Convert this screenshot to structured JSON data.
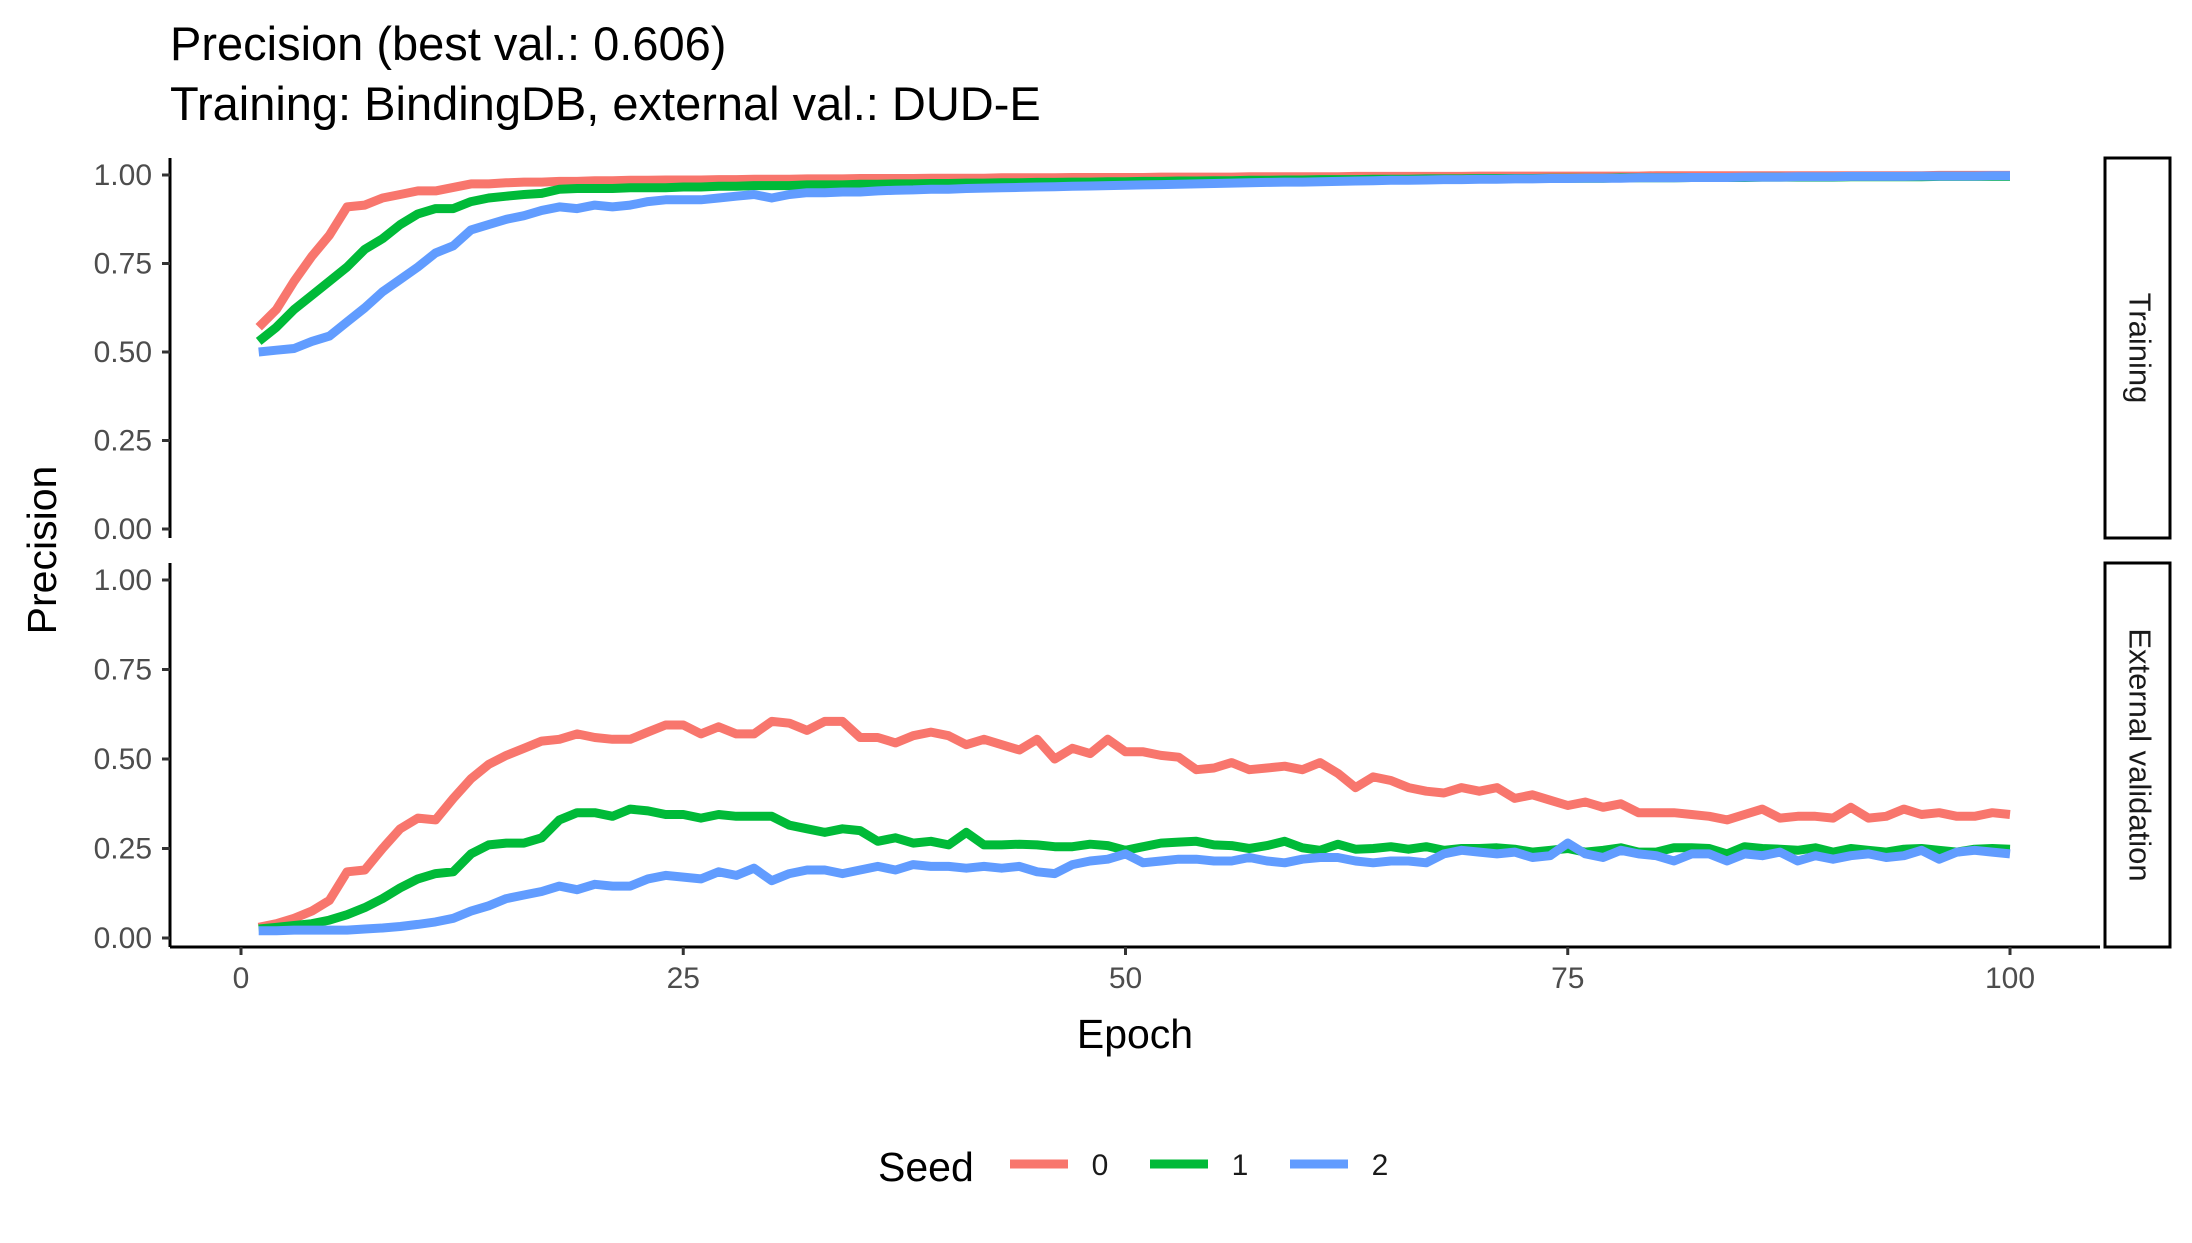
{
  "chart_data": {
    "type": "line",
    "title": "Precision (best val.: 0.606)",
    "subtitle": "Training: BindingDB, external val.: DUD-E",
    "xlabel": "Epoch",
    "ylabel": "Precision",
    "xlim": [
      0,
      100
    ],
    "ylim": [
      0,
      1
    ],
    "x_ticks": [
      0,
      25,
      50,
      75,
      100
    ],
    "y_ticks": [
      0,
      0.25,
      0.5,
      0.75,
      1.0
    ],
    "y_tick_labels": [
      "0.00",
      "0.25",
      "0.50",
      "0.75",
      "1.00"
    ],
    "grid": false,
    "legend": {
      "title": "Seed",
      "position": "bottom",
      "entries": [
        {
          "label": "0",
          "color": "#F8766D"
        },
        {
          "label": "1",
          "color": "#00BA38"
        },
        {
          "label": "2",
          "color": "#619CFF"
        }
      ]
    },
    "x": [
      1,
      2,
      3,
      4,
      5,
      6,
      7,
      8,
      9,
      10,
      11,
      12,
      13,
      14,
      15,
      16,
      17,
      18,
      19,
      20,
      21,
      22,
      23,
      24,
      25,
      26,
      27,
      28,
      29,
      30,
      31,
      32,
      33,
      34,
      35,
      36,
      37,
      38,
      39,
      40,
      41,
      42,
      43,
      44,
      45,
      46,
      47,
      48,
      49,
      50,
      51,
      52,
      53,
      54,
      55,
      56,
      57,
      58,
      59,
      60,
      61,
      62,
      63,
      64,
      65,
      66,
      67,
      68,
      69,
      70,
      71,
      72,
      73,
      74,
      75,
      76,
      77,
      78,
      79,
      80,
      81,
      82,
      83,
      84,
      85,
      86,
      87,
      88,
      89,
      90,
      91,
      92,
      93,
      94,
      95,
      96,
      97,
      98,
      99,
      100
    ],
    "panels": [
      {
        "strip": "Training",
        "series": [
          {
            "name": "0",
            "color": "#F8766D",
            "values": [
              0.57,
              0.62,
              0.7,
              0.77,
              0.83,
              0.91,
              0.915,
              0.935,
              0.945,
              0.955,
              0.955,
              0.965,
              0.975,
              0.975,
              0.978,
              0.98,
              0.98,
              0.982,
              0.982,
              0.984,
              0.984,
              0.985,
              0.985,
              0.986,
              0.986,
              0.986,
              0.987,
              0.987,
              0.988,
              0.988,
              0.988,
              0.989,
              0.989,
              0.989,
              0.99,
              0.99,
              0.99,
              0.99,
              0.991,
              0.991,
              0.991,
              0.991,
              0.992,
              0.992,
              0.992,
              0.992,
              0.993,
              0.993,
              0.993,
              0.993,
              0.993,
              0.994,
              0.994,
              0.994,
              0.994,
              0.994,
              0.995,
              0.995,
              0.995,
              0.995,
              0.995,
              0.995,
              0.996,
              0.996,
              0.996,
              0.996,
              0.996,
              0.996,
              0.996,
              0.997,
              0.997,
              0.997,
              0.997,
              0.997,
              0.997,
              0.997,
              0.997,
              0.997,
              0.997,
              0.998,
              0.998,
              0.998,
              0.998,
              0.998,
              0.998,
              0.998,
              0.998,
              0.998,
              0.998,
              0.998,
              0.998,
              0.998,
              0.998,
              0.998,
              0.998,
              0.999,
              0.999,
              0.999,
              0.999,
              0.999
            ]
          },
          {
            "name": "1",
            "color": "#00BA38",
            "values": [
              0.53,
              0.57,
              0.62,
              0.66,
              0.7,
              0.74,
              0.79,
              0.82,
              0.86,
              0.89,
              0.905,
              0.905,
              0.925,
              0.935,
              0.94,
              0.945,
              0.948,
              0.96,
              0.962,
              0.962,
              0.962,
              0.964,
              0.964,
              0.964,
              0.966,
              0.966,
              0.968,
              0.968,
              0.97,
              0.97,
              0.97,
              0.972,
              0.972,
              0.972,
              0.974,
              0.974,
              0.975,
              0.975,
              0.976,
              0.976,
              0.977,
              0.977,
              0.978,
              0.978,
              0.979,
              0.979,
              0.98,
              0.98,
              0.981,
              0.981,
              0.982,
              0.982,
              0.983,
              0.983,
              0.984,
              0.984,
              0.985,
              0.985,
              0.986,
              0.986,
              0.987,
              0.987,
              0.987,
              0.988,
              0.988,
              0.988,
              0.989,
              0.989,
              0.989,
              0.99,
              0.99,
              0.99,
              0.99,
              0.991,
              0.991,
              0.991,
              0.991,
              0.992,
              0.992,
              0.992,
              0.992,
              0.993,
              0.993,
              0.993,
              0.993,
              0.994,
              0.994,
              0.994,
              0.994,
              0.994,
              0.995,
              0.995,
              0.995,
              0.995,
              0.995,
              0.996,
              0.996,
              0.996,
              0.996,
              0.996
            ]
          },
          {
            "name": "2",
            "color": "#619CFF",
            "values": [
              0.5,
              0.505,
              0.51,
              0.53,
              0.545,
              0.585,
              0.625,
              0.67,
              0.705,
              0.74,
              0.78,
              0.8,
              0.845,
              0.86,
              0.875,
              0.885,
              0.9,
              0.91,
              0.905,
              0.915,
              0.91,
              0.915,
              0.925,
              0.93,
              0.93,
              0.93,
              0.935,
              0.94,
              0.945,
              0.935,
              0.945,
              0.95,
              0.95,
              0.952,
              0.952,
              0.955,
              0.957,
              0.958,
              0.96,
              0.96,
              0.962,
              0.963,
              0.964,
              0.965,
              0.966,
              0.967,
              0.968,
              0.969,
              0.97,
              0.971,
              0.972,
              0.973,
              0.974,
              0.975,
              0.976,
              0.977,
              0.978,
              0.979,
              0.98,
              0.98,
              0.981,
              0.982,
              0.983,
              0.984,
              0.985,
              0.985,
              0.986,
              0.987,
              0.987,
              0.988,
              0.988,
              0.989,
              0.989,
              0.99,
              0.99,
              0.991,
              0.991,
              0.991,
              0.992,
              0.992,
              0.992,
              0.993,
              0.993,
              0.993,
              0.994,
              0.994,
              0.994,
              0.995,
              0.995,
              0.995,
              0.996,
              0.996,
              0.996,
              0.996,
              0.997,
              0.997,
              0.997,
              0.997,
              0.998,
              0.998
            ]
          }
        ]
      },
      {
        "strip": "External validation",
        "series": [
          {
            "name": "0",
            "color": "#F8766D",
            "values": [
              0.03,
              0.04,
              0.055,
              0.075,
              0.105,
              0.185,
              0.19,
              0.25,
              0.305,
              0.335,
              0.33,
              0.39,
              0.445,
              0.485,
              0.51,
              0.53,
              0.55,
              0.555,
              0.57,
              0.56,
              0.555,
              0.555,
              0.575,
              0.595,
              0.595,
              0.57,
              0.59,
              0.57,
              0.57,
              0.605,
              0.6,
              0.58,
              0.605,
              0.605,
              0.56,
              0.56,
              0.545,
              0.565,
              0.575,
              0.565,
              0.54,
              0.555,
              0.54,
              0.525,
              0.555,
              0.5,
              0.53,
              0.515,
              0.555,
              0.52,
              0.52,
              0.51,
              0.505,
              0.47,
              0.475,
              0.49,
              0.47,
              0.475,
              0.48,
              0.47,
              0.49,
              0.46,
              0.42,
              0.45,
              0.44,
              0.42,
              0.41,
              0.405,
              0.42,
              0.41,
              0.42,
              0.39,
              0.4,
              0.385,
              0.37,
              0.38,
              0.365,
              0.375,
              0.35,
              0.35,
              0.35,
              0.345,
              0.34,
              0.33,
              0.345,
              0.36,
              0.335,
              0.34,
              0.34,
              0.335,
              0.365,
              0.335,
              0.34,
              0.36,
              0.345,
              0.35,
              0.34,
              0.34,
              0.35,
              0.345
            ]
          },
          {
            "name": "1",
            "color": "#00BA38",
            "values": [
              0.025,
              0.03,
              0.035,
              0.04,
              0.05,
              0.065,
              0.085,
              0.11,
              0.14,
              0.165,
              0.18,
              0.185,
              0.235,
              0.26,
              0.265,
              0.265,
              0.28,
              0.33,
              0.35,
              0.35,
              0.34,
              0.36,
              0.355,
              0.345,
              0.345,
              0.335,
              0.345,
              0.34,
              0.34,
              0.34,
              0.315,
              0.305,
              0.295,
              0.305,
              0.3,
              0.27,
              0.28,
              0.265,
              0.27,
              0.26,
              0.295,
              0.26,
              0.26,
              0.262,
              0.26,
              0.255,
              0.255,
              0.262,
              0.258,
              0.245,
              0.255,
              0.265,
              0.268,
              0.27,
              0.26,
              0.258,
              0.25,
              0.258,
              0.27,
              0.252,
              0.245,
              0.262,
              0.248,
              0.25,
              0.255,
              0.248,
              0.255,
              0.245,
              0.25,
              0.25,
              0.252,
              0.248,
              0.24,
              0.245,
              0.25,
              0.24,
              0.245,
              0.252,
              0.24,
              0.24,
              0.252,
              0.252,
              0.25,
              0.235,
              0.255,
              0.25,
              0.248,
              0.245,
              0.252,
              0.24,
              0.25,
              0.245,
              0.24,
              0.248,
              0.25,
              0.245,
              0.24,
              0.248,
              0.25,
              0.248
            ]
          },
          {
            "name": "2",
            "color": "#619CFF",
            "values": [
              0.02,
              0.02,
              0.022,
              0.022,
              0.022,
              0.022,
              0.025,
              0.028,
              0.032,
              0.038,
              0.045,
              0.055,
              0.075,
              0.09,
              0.11,
              0.12,
              0.13,
              0.145,
              0.135,
              0.15,
              0.145,
              0.145,
              0.165,
              0.175,
              0.17,
              0.165,
              0.185,
              0.175,
              0.195,
              0.16,
              0.18,
              0.19,
              0.19,
              0.18,
              0.19,
              0.2,
              0.19,
              0.205,
              0.2,
              0.2,
              0.195,
              0.2,
              0.195,
              0.2,
              0.185,
              0.18,
              0.205,
              0.215,
              0.22,
              0.235,
              0.21,
              0.215,
              0.22,
              0.22,
              0.215,
              0.215,
              0.225,
              0.215,
              0.21,
              0.22,
              0.225,
              0.225,
              0.215,
              0.21,
              0.215,
              0.215,
              0.21,
              0.235,
              0.245,
              0.24,
              0.235,
              0.24,
              0.225,
              0.23,
              0.265,
              0.235,
              0.225,
              0.245,
              0.235,
              0.23,
              0.215,
              0.235,
              0.235,
              0.215,
              0.235,
              0.23,
              0.24,
              0.215,
              0.23,
              0.22,
              0.23,
              0.235,
              0.225,
              0.23,
              0.245,
              0.22,
              0.24,
              0.245,
              0.24,
              0.235
            ]
          }
        ]
      }
    ]
  }
}
